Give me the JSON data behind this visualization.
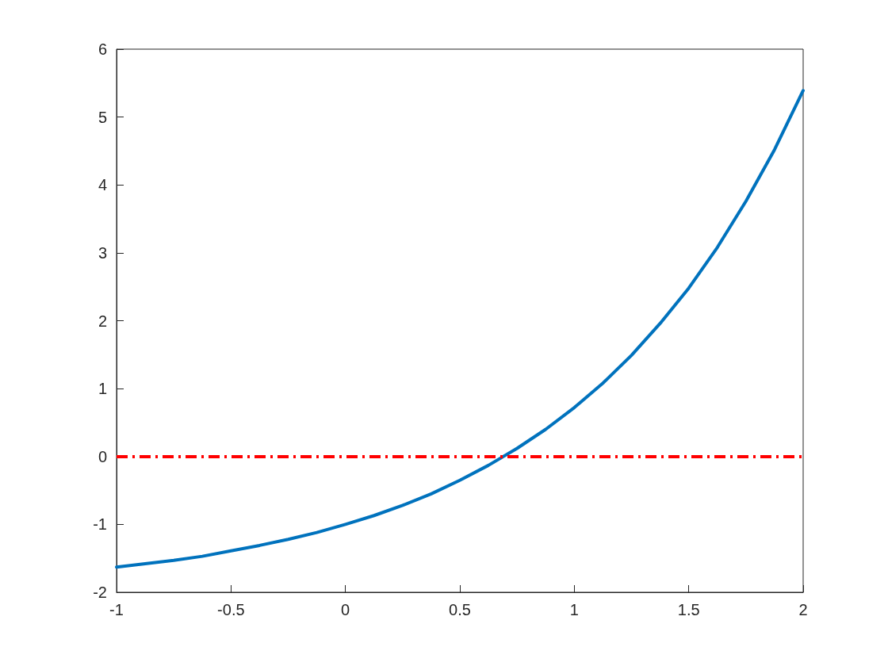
{
  "chart_data": {
    "type": "line",
    "x": [
      -1,
      -0.875,
      -0.75,
      -0.625,
      -0.5,
      -0.375,
      -0.25,
      -0.125,
      0,
      0.125,
      0.25,
      0.375,
      0.5,
      0.625,
      0.75,
      0.875,
      1,
      1.125,
      1.25,
      1.375,
      1.5,
      1.625,
      1.75,
      1.875,
      2
    ],
    "series": [
      {
        "color": "#0072bd",
        "values": [
          -1.63,
          -1.58,
          -1.53,
          -1.47,
          -1.39,
          -1.31,
          -1.22,
          -1.12,
          -1,
          -0.87,
          -0.72,
          -0.55,
          -0.35,
          -0.13,
          0.12,
          0.4,
          0.72,
          1.08,
          1.49,
          1.96,
          2.48,
          3.08,
          3.76,
          4.52,
          5.39
        ]
      }
    ],
    "xlim": [
      -1,
      2
    ],
    "xticks": [
      -1,
      -0.5,
      0,
      0.5,
      1,
      1.5,
      2
    ],
    "ylim": [
      -2,
      6
    ],
    "yticks": [
      -2,
      -1,
      0,
      1,
      2,
      3,
      4,
      5,
      6
    ],
    "ref_lines": [
      {
        "axis": "y",
        "value": 0,
        "color": "#ff0000",
        "line_style": "dashed"
      }
    ],
    "grid": false,
    "marker": "none",
    "line_style": "solid"
  }
}
